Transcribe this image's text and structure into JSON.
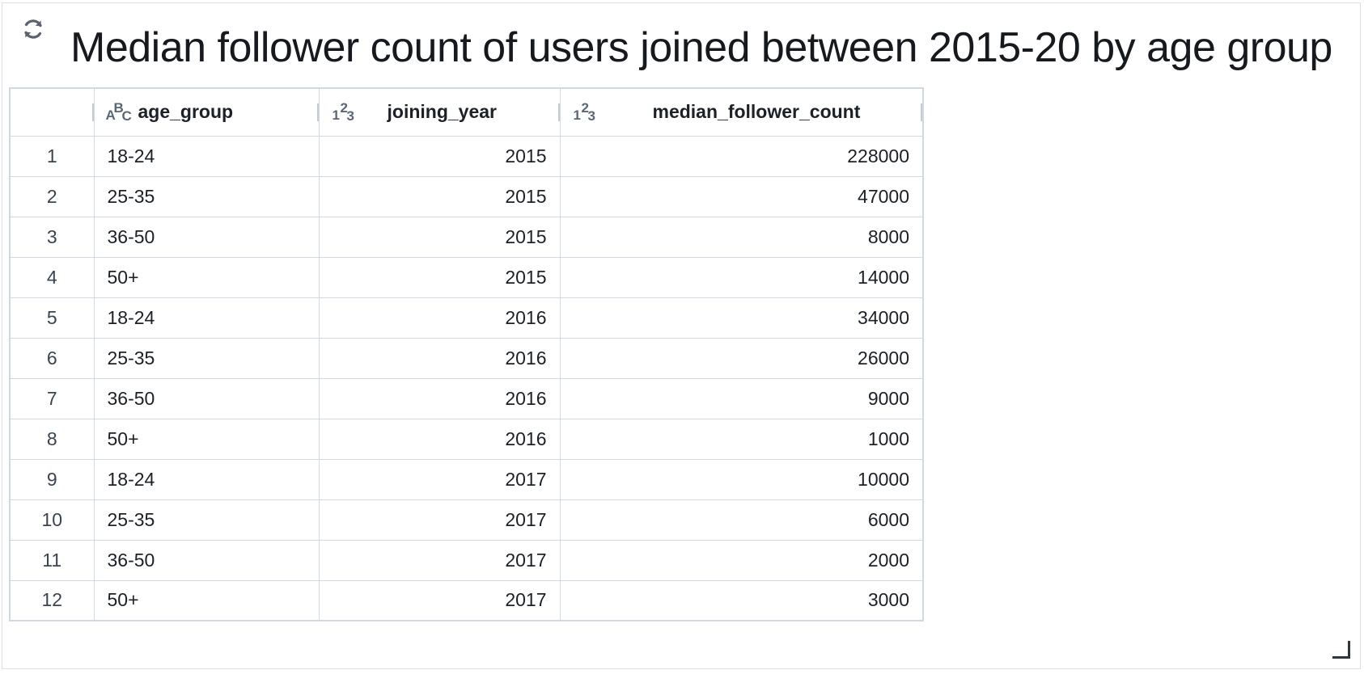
{
  "panel": {
    "title": "Median follower count of users joined between 2015-20 by age group",
    "refresh_icon": "refresh-icon",
    "resize_icon": "resize-handle-icon"
  },
  "table": {
    "columns": [
      {
        "key": "index",
        "label": ""
      },
      {
        "key": "age_group",
        "label": "age_group",
        "type_icon": "string-type-icon",
        "type_glyph": [
          "A",
          "B",
          "C"
        ]
      },
      {
        "key": "joining_year",
        "label": "joining_year",
        "type_icon": "number-type-icon",
        "type_glyph": [
          "1",
          "2",
          "3"
        ]
      },
      {
        "key": "median_follower_count",
        "label": "median_follower_count",
        "type_icon": "number-type-icon",
        "type_glyph": [
          "1",
          "2",
          "3"
        ]
      }
    ],
    "rows": [
      {
        "index": "1",
        "age_group": "18-24",
        "joining_year": "2015",
        "median_follower_count": "228000"
      },
      {
        "index": "2",
        "age_group": "25-35",
        "joining_year": "2015",
        "median_follower_count": "47000"
      },
      {
        "index": "3",
        "age_group": "36-50",
        "joining_year": "2015",
        "median_follower_count": "8000"
      },
      {
        "index": "4",
        "age_group": "50+",
        "joining_year": "2015",
        "median_follower_count": "14000"
      },
      {
        "index": "5",
        "age_group": "18-24",
        "joining_year": "2016",
        "median_follower_count": "34000"
      },
      {
        "index": "6",
        "age_group": "25-35",
        "joining_year": "2016",
        "median_follower_count": "26000"
      },
      {
        "index": "7",
        "age_group": "36-50",
        "joining_year": "2016",
        "median_follower_count": "9000"
      },
      {
        "index": "8",
        "age_group": "50+",
        "joining_year": "2016",
        "median_follower_count": "1000"
      },
      {
        "index": "9",
        "age_group": "18-24",
        "joining_year": "2017",
        "median_follower_count": "10000"
      },
      {
        "index": "10",
        "age_group": "25-35",
        "joining_year": "2017",
        "median_follower_count": "6000"
      },
      {
        "index": "11",
        "age_group": "36-50",
        "joining_year": "2017",
        "median_follower_count": "2000"
      },
      {
        "index": "12",
        "age_group": "50+",
        "joining_year": "2017",
        "median_follower_count": "3000"
      }
    ]
  }
}
